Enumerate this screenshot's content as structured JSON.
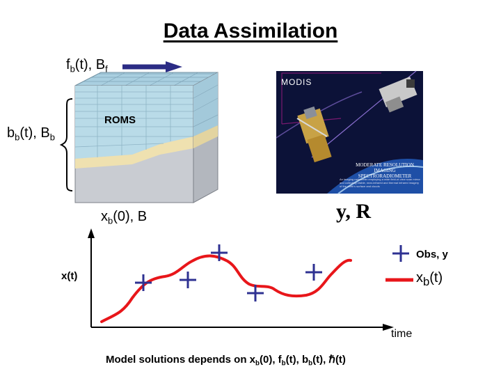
{
  "title": "Data Assimilation",
  "labels": {
    "forcing": {
      "base": "f",
      "sub": "b",
      "rest": "(t),  B",
      "sub2": "f"
    },
    "boundary": {
      "base": "b",
      "sub": "b",
      "rest": "(t), B",
      "sub2": "b"
    },
    "model": "ROMS",
    "initial": {
      "base": "x",
      "sub": "b",
      "rest": "(0),  B"
    },
    "observations": "y, R",
    "state_axis": "x(t)",
    "time_axis": "time"
  },
  "legend": {
    "obs": "Obs, y",
    "background": {
      "base": "x",
      "sub": "b",
      "rest": "(t)"
    }
  },
  "caption": {
    "prefix": "Model solutions depends on ",
    "t1": "x",
    "s1": "b",
    "r1": "(0), ",
    "t2": "f",
    "s2": "b",
    "r2": "(t), ",
    "t3": "b",
    "s3": "b",
    "r3": "(t), ",
    "symbol": "ℏ",
    "r4": "(t)"
  },
  "satellite_panel": {
    "name": "MODIS",
    "full_name": "MODERATE RESOLUTION IMAGING SPECTRORADIOMETER",
    "blurb": "An imaging radiometer employing a wide field-of-view scan mirror and collecting visible, near-infrared and thermal infrared imagery of the earth's surface and clouds"
  },
  "colors": {
    "title": "#000000",
    "observation_marker": "#2e3192",
    "background_curve": "#e8161a",
    "arrow": "#2b2c85",
    "ocean_layer": "#b9dbe8",
    "sediment_layer": "#efe1b0",
    "panel_dark": "#0c1238"
  }
}
